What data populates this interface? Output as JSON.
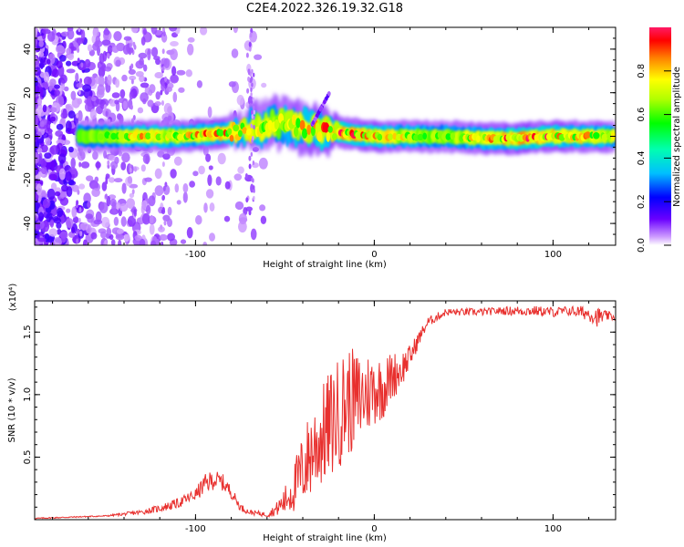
{
  "title": "C2E4.2022.326.19.32.G18",
  "chart_data": [
    {
      "type": "heatmap",
      "xlabel": "Height of straight line (km)",
      "ylabel": "Frequency (Hz)",
      "xlim": [
        -190,
        135
      ],
      "ylim": [
        -50,
        50
      ],
      "xticks": [
        -100,
        0,
        100
      ],
      "yticks": [
        -40,
        -20,
        0,
        20,
        40
      ],
      "grid": false,
      "colorbar": {
        "label": "Normalized spectral amplitude",
        "range": [
          0,
          1
        ],
        "ticks": [
          0.0,
          0.2,
          0.4,
          0.6,
          0.8
        ]
      },
      "ridge": {
        "x": [
          -165,
          -150,
          -130,
          -110,
          -90,
          -70,
          -55,
          -40,
          -25,
          -10,
          0,
          20,
          40,
          60,
          80,
          100,
          120,
          135
        ],
        "center_freq": [
          0,
          0,
          0,
          0,
          1,
          3,
          6,
          4,
          2,
          1,
          0,
          0,
          0,
          -1,
          -1,
          0,
          0,
          0
        ],
        "peak_amplitude": [
          0.5,
          0.6,
          0.8,
          0.7,
          0.9,
          0.8,
          0.7,
          0.8,
          0.9,
          0.95,
          0.9,
          0.7,
          0.6,
          0.8,
          1.0,
          0.9,
          0.8,
          0.7
        ]
      }
    },
    {
      "type": "line",
      "xlabel": "Height of straight line (km)",
      "ylabel": "SNR (10 * v/v)",
      "y_multiplier": "(x10⁴)",
      "xlim": [
        -190,
        135
      ],
      "ylim": [
        0,
        1.75
      ],
      "xticks": [
        -100,
        0,
        100
      ],
      "yticks": [
        0.5,
        1.0,
        1.5
      ],
      "grid": false,
      "series": [
        {
          "color": "#e8302e",
          "x": [
            -190,
            -170,
            -150,
            -130,
            -120,
            -110,
            -100,
            -95,
            -90,
            -85,
            -80,
            -75,
            -70,
            -65,
            -60,
            -55,
            -50,
            -45,
            -40,
            -35,
            -30,
            -25,
            -20,
            -15,
            -10,
            -5,
            0,
            5,
            10,
            15,
            20,
            25,
            30,
            40,
            50,
            60,
            70,
            80,
            90,
            100,
            110,
            120,
            125,
            130,
            135
          ],
          "y": [
            0.01,
            0.02,
            0.03,
            0.06,
            0.09,
            0.13,
            0.2,
            0.28,
            0.32,
            0.3,
            0.22,
            0.1,
            0.06,
            0.05,
            0.04,
            0.08,
            0.15,
            0.25,
            0.4,
            0.55,
            0.65,
            0.75,
            0.85,
            0.95,
            0.95,
            1.0,
            1.05,
            1.05,
            1.15,
            1.2,
            1.3,
            1.45,
            1.58,
            1.66,
            1.66,
            1.66,
            1.67,
            1.67,
            1.67,
            1.66,
            1.67,
            1.65,
            1.62,
            1.63,
            1.62
          ],
          "noise": [
            0.005,
            0.005,
            0.005,
            0.02,
            0.03,
            0.04,
            0.05,
            0.08,
            0.08,
            0.07,
            0.05,
            0.03,
            0.02,
            0.02,
            0.02,
            0.05,
            0.12,
            0.2,
            0.3,
            0.38,
            0.4,
            0.45,
            0.45,
            0.45,
            0.4,
            0.35,
            0.3,
            0.25,
            0.2,
            0.15,
            0.1,
            0.06,
            0.04,
            0.03,
            0.03,
            0.03,
            0.03,
            0.04,
            0.04,
            0.04,
            0.04,
            0.06,
            0.08,
            0.04,
            0.03
          ]
        }
      ]
    }
  ]
}
